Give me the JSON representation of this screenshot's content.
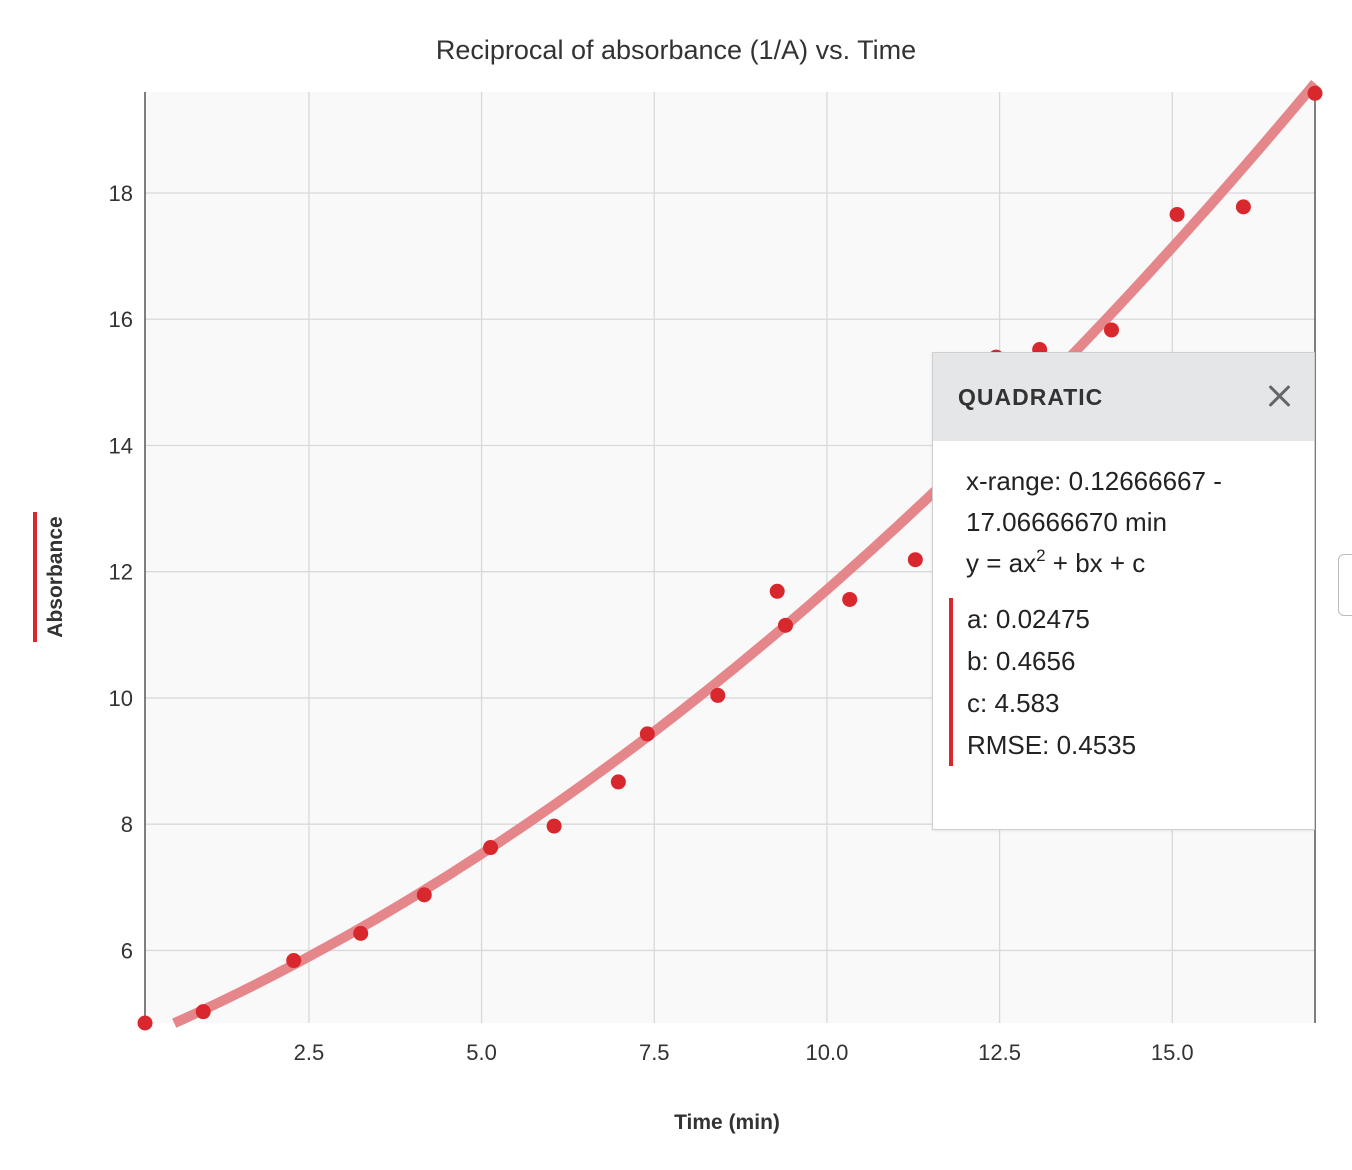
{
  "chart_data": {
    "type": "scatter",
    "title": "Reciprocal of absorbance (1/A) vs. Time",
    "xlabel": "Time (min)",
    "ylabel": "Absorbance",
    "xlim": [
      0.12666667,
      17.0666667
    ],
    "ylim": [
      4.85,
      19.6
    ],
    "x_ticks": [
      2.5,
      5.0,
      7.5,
      10.0,
      12.5,
      15.0
    ],
    "x_tick_labels": [
      "2.5",
      "5.0",
      "7.5",
      "10.0",
      "12.5",
      "15.0"
    ],
    "y_ticks": [
      6,
      8,
      10,
      12,
      14,
      16,
      18
    ],
    "y_tick_labels": [
      "6",
      "8",
      "10",
      "12",
      "14",
      "16",
      "18"
    ],
    "grid": true,
    "points": [
      {
        "x": 0.127,
        "y": 4.85
      },
      {
        "x": 0.97,
        "y": 5.03
      },
      {
        "x": 2.28,
        "y": 5.84
      },
      {
        "x": 3.25,
        "y": 6.27
      },
      {
        "x": 4.17,
        "y": 6.88
      },
      {
        "x": 5.13,
        "y": 7.63
      },
      {
        "x": 6.05,
        "y": 7.97
      },
      {
        "x": 6.98,
        "y": 8.67
      },
      {
        "x": 7.4,
        "y": 9.43
      },
      {
        "x": 8.42,
        "y": 10.04
      },
      {
        "x": 9.28,
        "y": 11.69
      },
      {
        "x": 9.4,
        "y": 11.15
      },
      {
        "x": 10.33,
        "y": 11.56
      },
      {
        "x": 11.28,
        "y": 12.19
      },
      {
        "x": 12.45,
        "y": 15.4
      },
      {
        "x": 13.08,
        "y": 15.52
      },
      {
        "x": 14.12,
        "y": 15.83
      },
      {
        "x": 15.07,
        "y": 17.66
      },
      {
        "x": 16.03,
        "y": 17.78
      },
      {
        "x": 17.067,
        "y": 19.58
      }
    ],
    "fit": {
      "model": "quadratic",
      "a": 0.02475,
      "b": 0.4656,
      "c": 4.583,
      "x_start": 0.55,
      "x_end": 17.067
    },
    "colors": {
      "points": "#d9272e",
      "fit_line": "#e5868b",
      "grid": "#d9d9d9",
      "plot_background": "#f9f9f9",
      "axis": "#555555"
    }
  },
  "popup": {
    "title": "QUADRATIC",
    "close_icon": "close-icon",
    "x_range_line1": "x-range: 0.12666667 -",
    "x_range_line2": "17.06666670 min",
    "equation_prefix": "y = ax",
    "equation_exponent": "2",
    "equation_suffix": " + bx + c",
    "a": "a: 0.02475",
    "b": "b: 0.4656",
    "c": "c: 4.583",
    "rmse": "RMSE: 0.4535"
  }
}
